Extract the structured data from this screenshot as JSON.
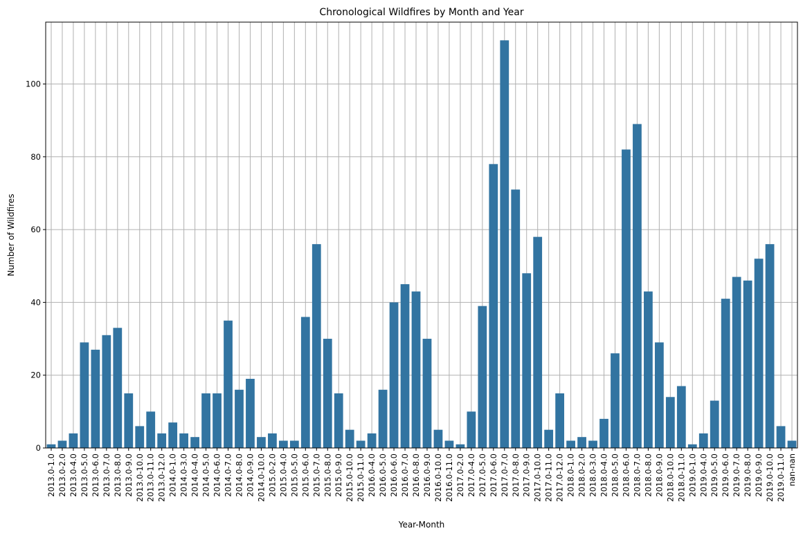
{
  "chart_data": {
    "type": "bar",
    "title": "Chronological Wildfires by Month and Year",
    "xlabel": "Year-Month",
    "ylabel": "Number of Wildfires",
    "ylim": [
      0,
      117
    ],
    "yticks": [
      0,
      20,
      40,
      60,
      80,
      100
    ],
    "grid": true,
    "bar_color": "#3274a1",
    "grid_color": "#b0b0b0",
    "categories": [
      "2013.0-1.0",
      "2013.0-2.0",
      "2013.0-4.0",
      "2013.0-5.0",
      "2013.0-6.0",
      "2013.0-7.0",
      "2013.0-8.0",
      "2013.0-9.0",
      "2013.0-10.0",
      "2013.0-11.0",
      "2013.0-12.0",
      "2014.0-1.0",
      "2014.0-3.0",
      "2014.0-4.0",
      "2014.0-5.0",
      "2014.0-6.0",
      "2014.0-7.0",
      "2014.0-8.0",
      "2014.0-9.0",
      "2014.0-10.0",
      "2015.0-2.0",
      "2015.0-4.0",
      "2015.0-5.0",
      "2015.0-6.0",
      "2015.0-7.0",
      "2015.0-8.0",
      "2015.0-9.0",
      "2015.0-10.0",
      "2015.0-11.0",
      "2016.0-4.0",
      "2016.0-5.0",
      "2016.0-6.0",
      "2016.0-7.0",
      "2016.0-8.0",
      "2016.0-9.0",
      "2016.0-10.0",
      "2016.0-11.0",
      "2017.0-2.0",
      "2017.0-4.0",
      "2017.0-5.0",
      "2017.0-6.0",
      "2017.0-7.0",
      "2017.0-8.0",
      "2017.0-9.0",
      "2017.0-10.0",
      "2017.0-11.0",
      "2017.0-12.0",
      "2018.0-1.0",
      "2018.0-2.0",
      "2018.0-3.0",
      "2018.0-4.0",
      "2018.0-5.0",
      "2018.0-6.0",
      "2018.0-7.0",
      "2018.0-8.0",
      "2018.0-9.0",
      "2018.0-10.0",
      "2018.0-11.0",
      "2019.0-1.0",
      "2019.0-4.0",
      "2019.0-5.0",
      "2019.0-6.0",
      "2019.0-7.0",
      "2019.0-8.0",
      "2019.0-9.0",
      "2019.0-10.0",
      "2019.0-11.0",
      "nan-nan"
    ],
    "values": [
      1,
      2,
      4,
      29,
      27,
      31,
      33,
      15,
      6,
      10,
      4,
      7,
      4,
      3,
      15,
      15,
      35,
      16,
      19,
      3,
      4,
      2,
      2,
      36,
      56,
      30,
      15,
      5,
      2,
      4,
      16,
      40,
      45,
      43,
      30,
      5,
      2,
      1,
      10,
      39,
      78,
      112,
      71,
      48,
      58,
      5,
      15,
      2,
      3,
      2,
      8,
      26,
      82,
      89,
      43,
      29,
      14,
      17,
      1,
      4,
      13,
      41,
      47,
      46,
      52,
      56,
      6,
      2
    ]
  }
}
